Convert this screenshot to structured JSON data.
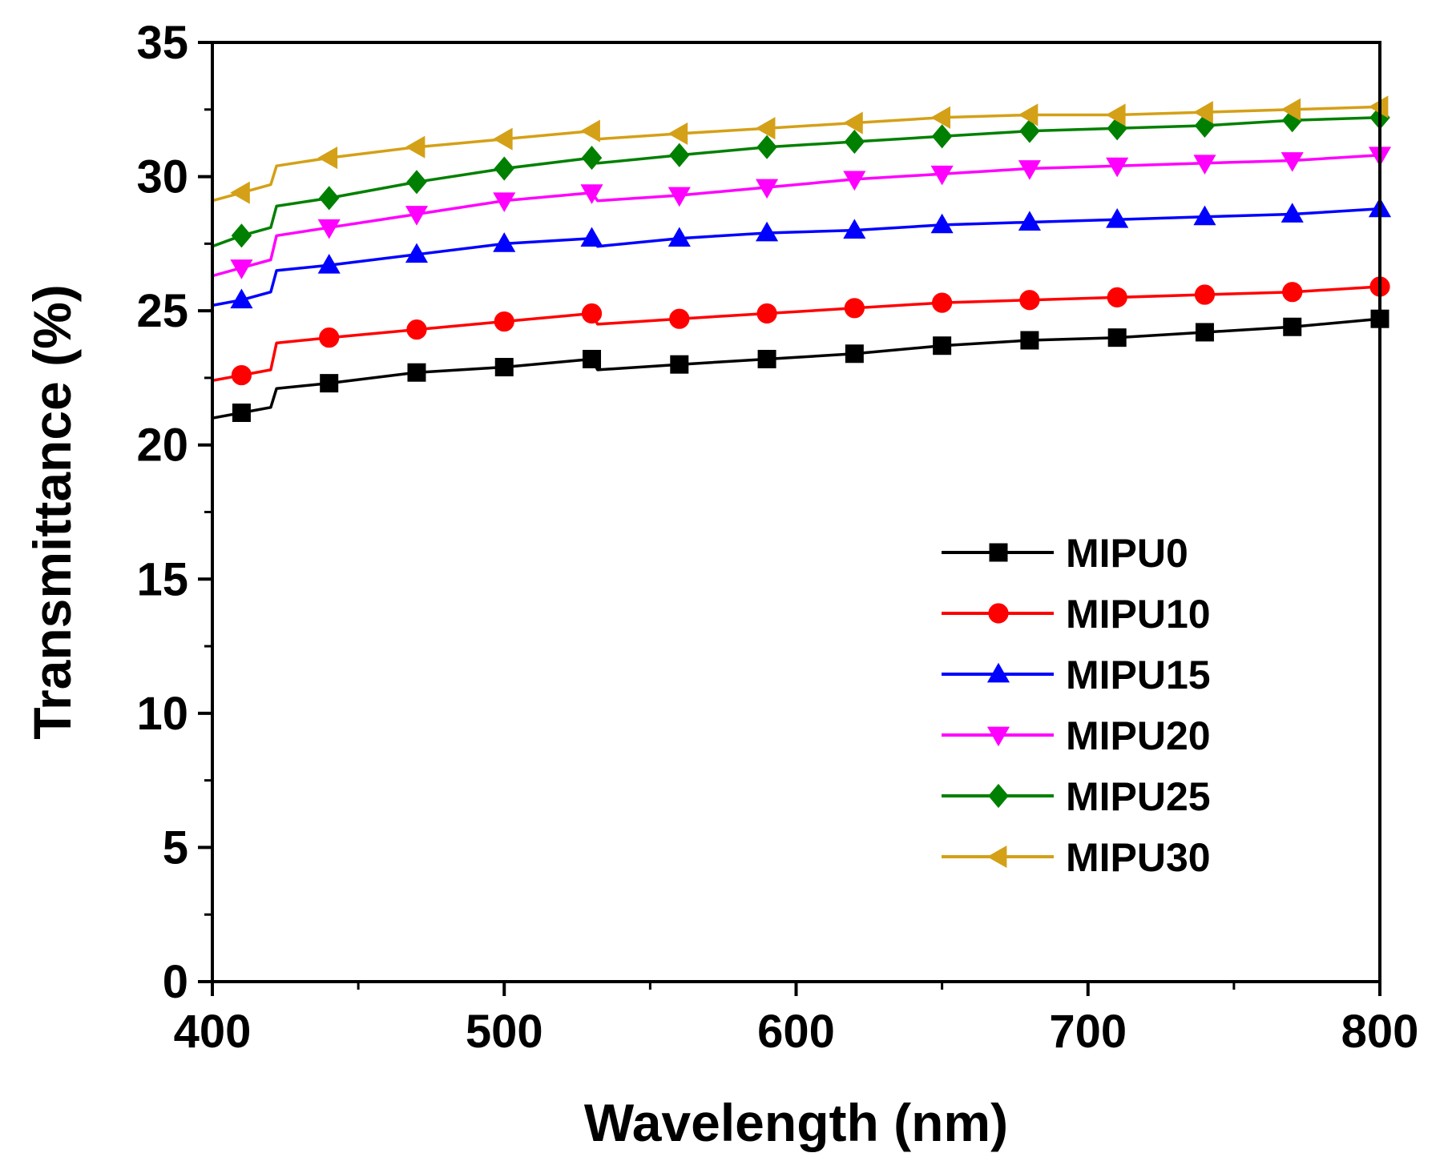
{
  "chart_data": {
    "type": "line",
    "title": "",
    "xlabel": "Wavelength (nm)",
    "ylabel": "Transmittance (%)",
    "xlim": [
      400,
      800
    ],
    "ylim": [
      0,
      35
    ],
    "xticks": [
      400,
      500,
      600,
      700,
      800
    ],
    "yticks": [
      0,
      5,
      10,
      15,
      20,
      25,
      30,
      35
    ],
    "grid": false,
    "legend_position": "bottom-right",
    "x": [
      400,
      410,
      420,
      422,
      440,
      470,
      500,
      530,
      532,
      560,
      590,
      620,
      650,
      680,
      710,
      740,
      770,
      800
    ],
    "marker_x": [
      410,
      440,
      470,
      500,
      530,
      560,
      590,
      620,
      650,
      680,
      710,
      740,
      770,
      800
    ],
    "series": [
      {
        "name": "MIPU0",
        "color": "#000000",
        "marker": "square",
        "values": [
          21.0,
          21.2,
          21.4,
          22.1,
          22.3,
          22.7,
          22.9,
          23.2,
          22.8,
          23.0,
          23.2,
          23.4,
          23.7,
          23.9,
          24.0,
          24.2,
          24.4,
          24.7
        ]
      },
      {
        "name": "MIPU10",
        "color": "#ff0000",
        "marker": "circle",
        "values": [
          22.4,
          22.6,
          22.8,
          23.8,
          24.0,
          24.3,
          24.6,
          24.9,
          24.5,
          24.7,
          24.9,
          25.1,
          25.3,
          25.4,
          25.5,
          25.6,
          25.7,
          25.9
        ]
      },
      {
        "name": "MIPU15",
        "color": "#0000ff",
        "marker": "triangle-up",
        "values": [
          25.2,
          25.4,
          25.7,
          26.5,
          26.7,
          27.1,
          27.5,
          27.7,
          27.4,
          27.7,
          27.9,
          28.0,
          28.2,
          28.3,
          28.4,
          28.5,
          28.6,
          28.8
        ]
      },
      {
        "name": "MIPU20",
        "color": "#ff00ff",
        "marker": "triangle-down",
        "values": [
          26.3,
          26.6,
          26.9,
          27.8,
          28.1,
          28.6,
          29.1,
          29.4,
          29.1,
          29.3,
          29.6,
          29.9,
          30.1,
          30.3,
          30.4,
          30.5,
          30.6,
          30.8
        ]
      },
      {
        "name": "MIPU25",
        "color": "#008000",
        "marker": "diamond",
        "values": [
          27.4,
          27.8,
          28.1,
          28.9,
          29.2,
          29.8,
          30.3,
          30.7,
          30.5,
          30.8,
          31.1,
          31.3,
          31.5,
          31.7,
          31.8,
          31.9,
          32.1,
          32.2
        ]
      },
      {
        "name": "MIPU30",
        "color": "#d4a017",
        "marker": "triangle-left",
        "values": [
          29.1,
          29.4,
          29.7,
          30.4,
          30.7,
          31.1,
          31.4,
          31.7,
          31.4,
          31.6,
          31.8,
          32.0,
          32.2,
          32.3,
          32.3,
          32.4,
          32.5,
          32.6
        ]
      }
    ]
  }
}
